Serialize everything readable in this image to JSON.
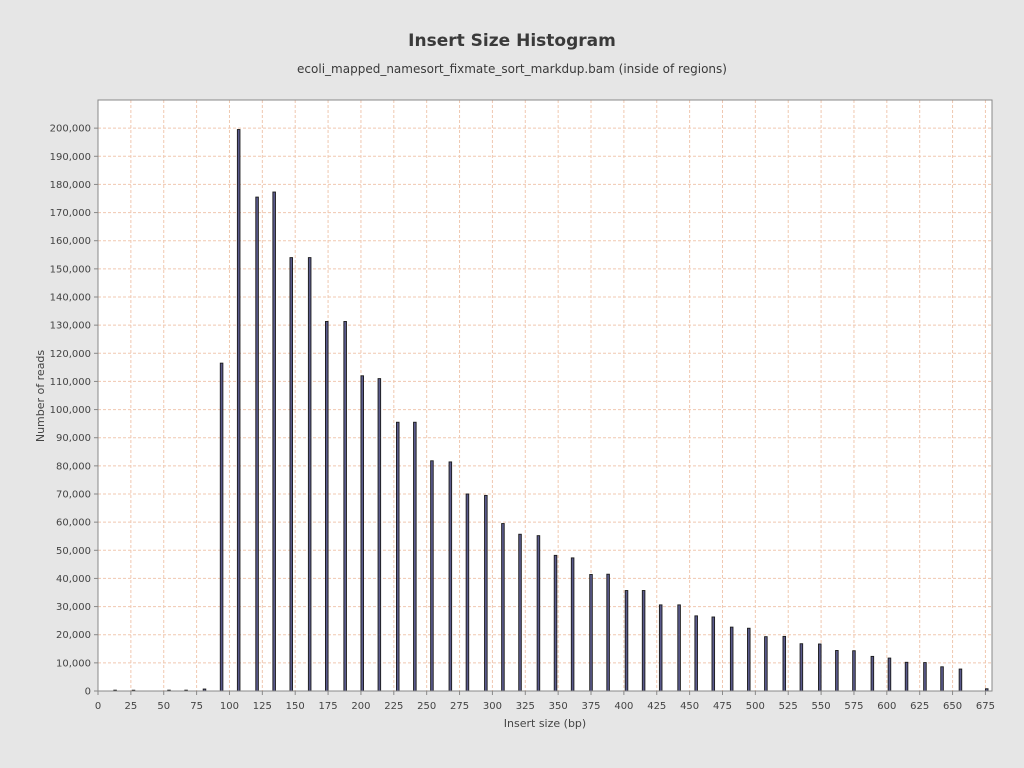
{
  "chart_data": {
    "type": "bar",
    "title": "Insert Size Histogram",
    "subtitle": "ecoli_mapped_namesort_fixmate_sort_markdup.bam (inside of regions)",
    "xlabel": "Insert size (bp)",
    "ylabel": "Number of reads",
    "xlim": [
      0,
      680
    ],
    "ylim": [
      0,
      210000
    ],
    "grid": true,
    "x_ticks": [
      0,
      25,
      50,
      75,
      100,
      125,
      150,
      175,
      200,
      225,
      250,
      275,
      300,
      325,
      350,
      375,
      400,
      425,
      450,
      475,
      500,
      525,
      550,
      575,
      600,
      625,
      650,
      675
    ],
    "x_tick_labels": [
      "0",
      "25",
      "50",
      "75",
      "100",
      "125",
      "150",
      "175",
      "200",
      "225",
      "250",
      "275",
      "300",
      "325",
      "350",
      "375",
      "400",
      "425",
      "450",
      "475",
      "500",
      "525",
      "550",
      "575",
      "600",
      "625",
      "650",
      "675"
    ],
    "y_ticks": [
      0,
      10000,
      20000,
      30000,
      40000,
      50000,
      60000,
      70000,
      80000,
      90000,
      100000,
      110000,
      120000,
      130000,
      140000,
      150000,
      160000,
      170000,
      180000,
      190000,
      200000
    ],
    "y_tick_labels": [
      "0",
      "10,000",
      "20,000",
      "30,000",
      "40,000",
      "50,000",
      "60,000",
      "70,000",
      "80,000",
      "90,000",
      "100,000",
      "110,000",
      "120,000",
      "130,000",
      "140,000",
      "150,000",
      "160,000",
      "170,000",
      "180,000",
      "190,000",
      "200,000"
    ],
    "x": [
      13,
      27,
      54,
      67,
      81,
      94,
      107,
      121,
      134,
      147,
      161,
      174,
      188,
      201,
      214,
      228,
      241,
      254,
      268,
      281,
      295,
      308,
      321,
      335,
      348,
      361,
      375,
      388,
      402,
      415,
      428,
      442,
      455,
      468,
      482,
      495,
      508,
      522,
      535,
      549,
      562,
      575,
      589,
      602,
      615,
      629,
      642,
      656,
      676
    ],
    "values": [
      300,
      200,
      300,
      300,
      700,
      116500,
      199500,
      175500,
      177300,
      154000,
      154000,
      131300,
      131300,
      112000,
      111000,
      95500,
      95500,
      81800,
      81400,
      70000,
      69500,
      59500,
      55700,
      55200,
      48200,
      47300,
      41400,
      41500,
      35700,
      35700,
      30600,
      30600,
      26700,
      26300,
      22700,
      22300,
      19300,
      19400,
      16800,
      16700,
      14400,
      14300,
      12300,
      11700,
      10200,
      10100,
      8600,
      7800,
      800
    ],
    "bar_color": "#5a5a8c",
    "bar_edge_color": "#1a1a1a",
    "grid_color": "#f0c8b0",
    "plot_background": "#ffffff"
  }
}
